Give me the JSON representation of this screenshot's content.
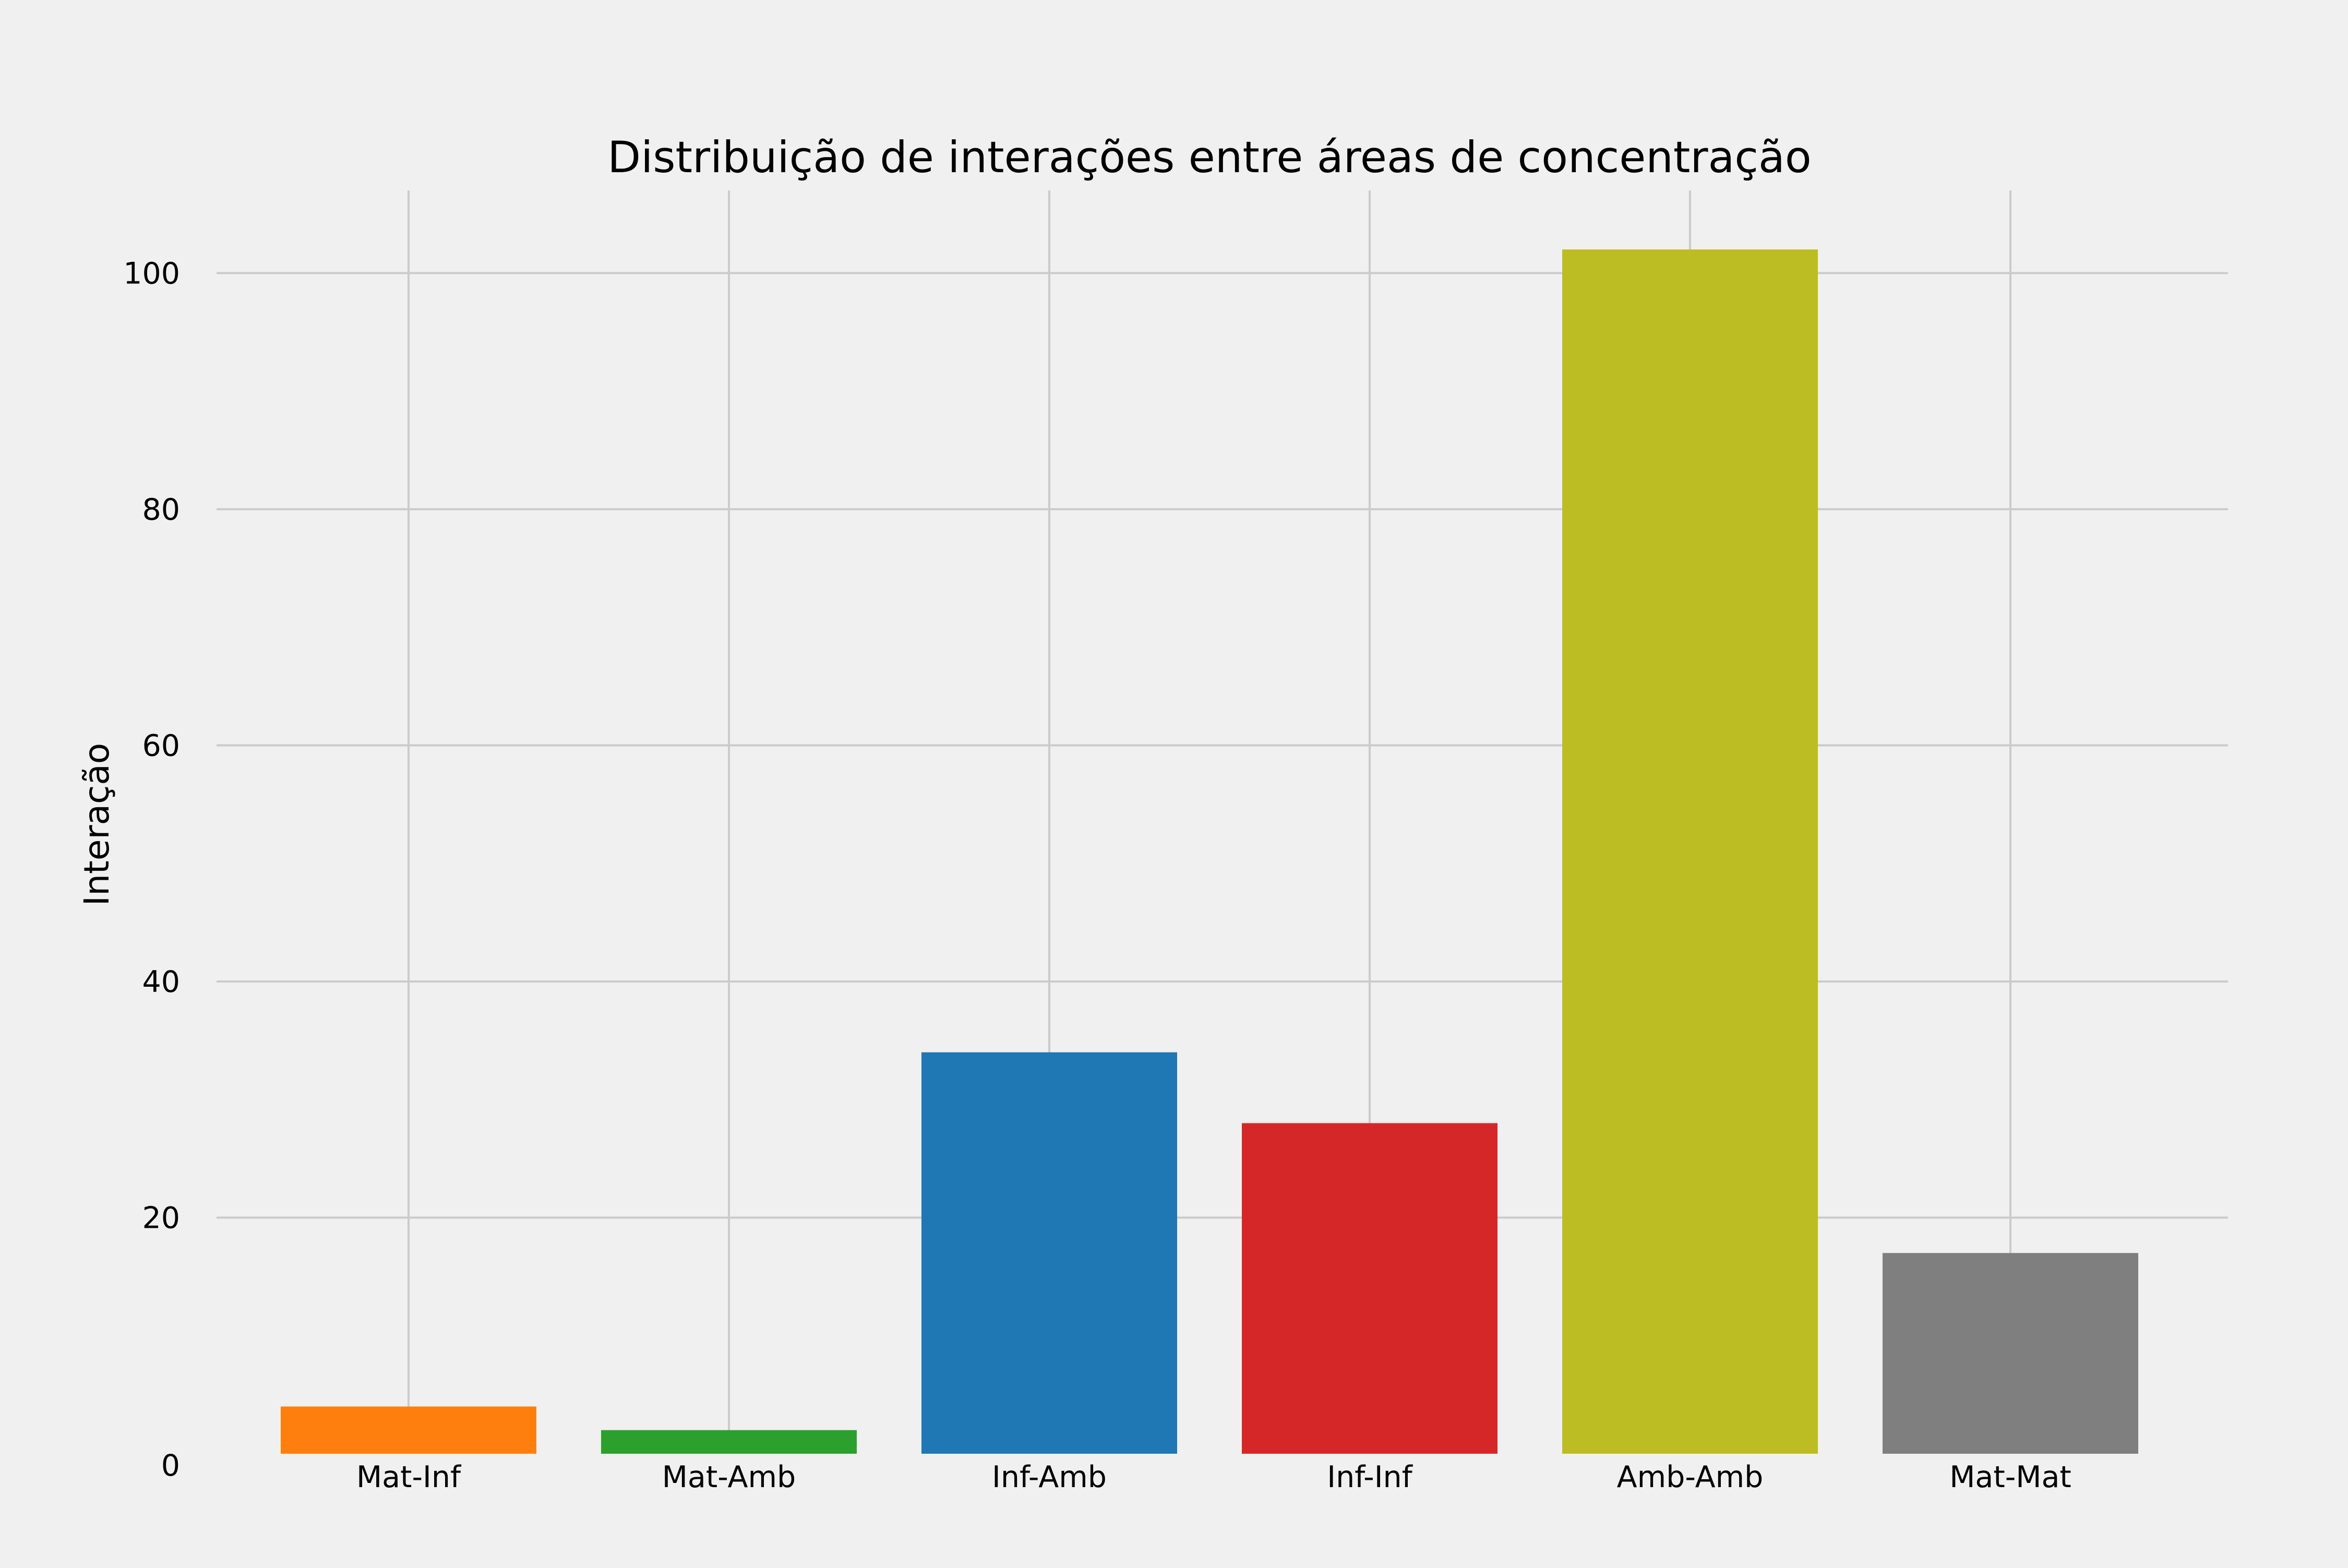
{
  "chart_data": {
    "type": "bar",
    "title": "Distribuição de interações entre áreas de concentração",
    "xlabel": "",
    "ylabel": "Interação",
    "categories": [
      "Mat-Inf",
      "Mat-Amb",
      "Inf-Amb",
      "Inf-Inf",
      "Amb-Amb",
      "Mat-Mat"
    ],
    "values": [
      4,
      2,
      34,
      28,
      102,
      17
    ],
    "colors": [
      "#ff7f0e",
      "#2ca02c",
      "#1f77b4",
      "#d62728",
      "#bcbd22",
      "#7f7f7f"
    ],
    "ylim": [
      0,
      107
    ],
    "yticks": [
      0,
      20,
      40,
      60,
      80,
      100
    ],
    "grid": true,
    "background": "#f0f0f0",
    "grid_color": "#cbcbcb"
  }
}
